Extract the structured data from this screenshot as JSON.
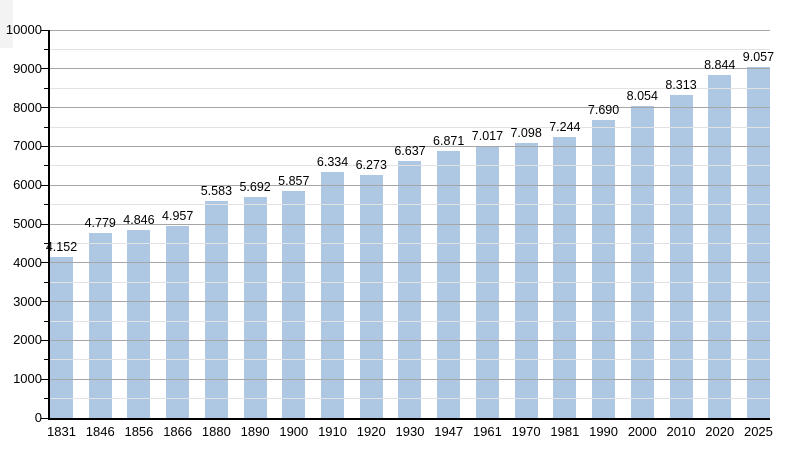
{
  "chart_data": {
    "type": "bar",
    "title": "",
    "xlabel": "",
    "ylabel": "",
    "categories": [
      "1831",
      "1846",
      "1856",
      "1866",
      "1880",
      "1890",
      "1900",
      "1910",
      "1920",
      "1930",
      "1947",
      "1961",
      "1970",
      "1981",
      "1990",
      "2000",
      "2010",
      "2020",
      "2025"
    ],
    "values": [
      4152,
      4779,
      4846,
      4957,
      5583,
      5692,
      5857,
      6334,
      6273,
      6637,
      6871,
      7017,
      7098,
      7244,
      7690,
      8054,
      8313,
      8844,
      9057
    ],
    "value_labels": [
      "4.152",
      "4.779",
      "4.846",
      "4.957",
      "5.583",
      "5.692",
      "5.857",
      "6.334",
      "6.273",
      "6.637",
      "6.871",
      "7.017",
      "7.098",
      "7.244",
      "7.690",
      "8.054",
      "8.313",
      "8.844",
      "9.057"
    ],
    "ylim": [
      0,
      10000
    ],
    "y_major_step": 1000,
    "y_minor_step": 500,
    "y_tick_labels": [
      "0",
      "1000",
      "2000",
      "3000",
      "4000",
      "5000",
      "6000",
      "7000",
      "8000",
      "9000",
      "10000"
    ],
    "grid": "major and minor horizontal gridlines, drawn over bars",
    "legend_position": "none"
  },
  "colors": {
    "bar_fill": "#aec8e4",
    "major_grid": "#a6a6a6",
    "minor_grid": "#e2e2e2",
    "axis": "#000000",
    "text": "#000000",
    "background": "#ffffff"
  }
}
